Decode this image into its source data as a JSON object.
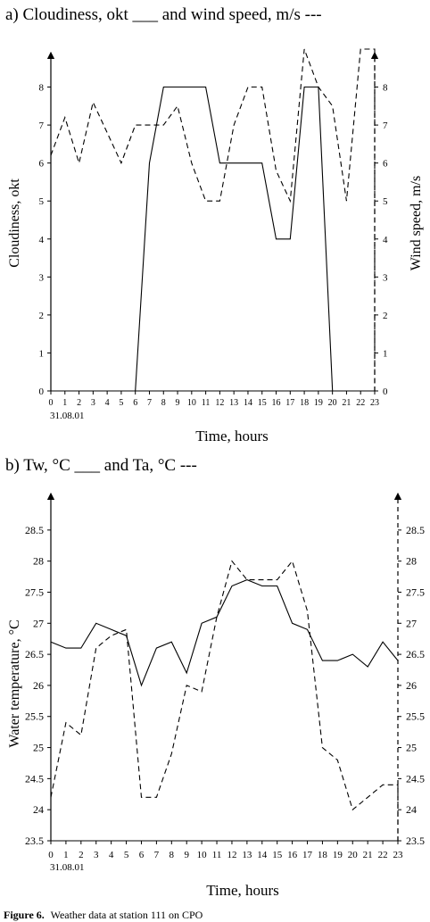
{
  "figure": {
    "caption_label": "Figure 6.",
    "caption_text": "Weather data at station 111 on CPO"
  },
  "chart_data": [
    {
      "type": "line",
      "title": "a) Cloudiness, okt ___ and wind speed, m/s ---",
      "xlabel": "Time, hours",
      "ylabel": "Cloudiness, okt",
      "y2label": "Wind speed, m/s",
      "date_label": "31.08.01",
      "x_ticks": [
        "0",
        "1",
        "2",
        "3",
        "4",
        "5",
        "6",
        "7",
        "8",
        "9",
        "10",
        "11",
        "12",
        "13",
        "14",
        "15",
        "16",
        "17",
        "18",
        "19",
        "20",
        "21",
        "22",
        "23"
      ],
      "y_ticks": [
        "0",
        "1",
        "2",
        "3",
        "4",
        "5",
        "6",
        "7",
        "8"
      ],
      "y2_ticks": [
        "0",
        "1",
        "2",
        "3",
        "4",
        "5",
        "6",
        "7",
        "8"
      ],
      "ylim": [
        0,
        8.6
      ],
      "y2lim": [
        0,
        8.6
      ],
      "grid": false,
      "series": [
        {
          "axis": "left",
          "style": "solid",
          "points": [
            [
              6,
              0
            ],
            [
              7,
              6
            ],
            [
              8,
              8
            ],
            [
              9,
              8
            ],
            [
              10,
              8
            ],
            [
              11,
              8
            ],
            [
              12,
              6
            ],
            [
              13,
              6
            ],
            [
              14,
              6
            ],
            [
              15,
              6
            ],
            [
              16,
              4
            ],
            [
              17,
              4
            ],
            [
              18,
              8
            ],
            [
              19,
              8
            ],
            [
              20,
              0
            ]
          ]
        },
        {
          "axis": "right",
          "style": "dashed",
          "points": [
            [
              0,
              6.2
            ],
            [
              1,
              7.2
            ],
            [
              2,
              6
            ],
            [
              3,
              7.6
            ],
            [
              4,
              6.8
            ],
            [
              5,
              6
            ],
            [
              6,
              7
            ],
            [
              7,
              7
            ],
            [
              8,
              7
            ],
            [
              9,
              7.5
            ],
            [
              10,
              6
            ],
            [
              11,
              5
            ],
            [
              12,
              5
            ],
            [
              13,
              7
            ],
            [
              14,
              8
            ],
            [
              15,
              8
            ],
            [
              16,
              5.8
            ],
            [
              17,
              5
            ],
            [
              18,
              9
            ],
            [
              19,
              8
            ],
            [
              20,
              7.5
            ],
            [
              21,
              5
            ],
            [
              22,
              9
            ],
            [
              23,
              9
            ],
            [
              23,
              0
            ]
          ]
        }
      ]
    },
    {
      "type": "line",
      "title": "b) Tw, °C ___ and Ta, °C ---",
      "xlabel": "Time, hours",
      "ylabel": "Water temperature, °C",
      "date_label": "31.08.01",
      "x_ticks": [
        "0",
        "1",
        "2",
        "3",
        "4",
        "5",
        "6",
        "7",
        "8",
        "9",
        "10",
        "11",
        "12",
        "13",
        "14",
        "15",
        "16",
        "17",
        "18",
        "19",
        "20",
        "21",
        "22",
        "23"
      ],
      "y_ticks": [
        "23.5",
        "24",
        "24.5",
        "25",
        "25.5",
        "26",
        "26.5",
        "27",
        "27.5",
        "28",
        "28.5"
      ],
      "y2_ticks": [
        "23.5",
        "24",
        "24.5",
        "25",
        "25.5",
        "26",
        "26.5",
        "27",
        "27.5",
        "28",
        "28.5"
      ],
      "ylim": [
        23.5,
        28.9
      ],
      "y2lim": [
        23.5,
        28.9
      ],
      "grid": false,
      "series": [
        {
          "axis": "left",
          "style": "solid",
          "points": [
            [
              0,
              26.7
            ],
            [
              1,
              26.6
            ],
            [
              2,
              26.6
            ],
            [
              3,
              27
            ],
            [
              4,
              26.9
            ],
            [
              5,
              26.8
            ],
            [
              6,
              26
            ],
            [
              7,
              26.6
            ],
            [
              8,
              26.7
            ],
            [
              9,
              26.2
            ],
            [
              10,
              27
            ],
            [
              11,
              27.1
            ],
            [
              12,
              27.6
            ],
            [
              13,
              27.7
            ],
            [
              14,
              27.6
            ],
            [
              15,
              27.6
            ],
            [
              16,
              27
            ],
            [
              17,
              26.9
            ],
            [
              18,
              26.4
            ],
            [
              19,
              26.4
            ],
            [
              20,
              26.5
            ],
            [
              21,
              26.3
            ],
            [
              22,
              26.7
            ],
            [
              23,
              26.4
            ]
          ]
        },
        {
          "axis": "right",
          "style": "dashed",
          "points": [
            [
              0,
              24.2
            ],
            [
              1,
              25.4
            ],
            [
              2,
              25.2
            ],
            [
              3,
              26.6
            ],
            [
              4,
              26.8
            ],
            [
              5,
              26.9
            ],
            [
              6,
              24.2
            ],
            [
              7,
              24.2
            ],
            [
              8,
              24.9
            ],
            [
              9,
              26
            ],
            [
              10,
              25.9
            ],
            [
              11,
              27.1
            ],
            [
              12,
              28
            ],
            [
              13,
              27.7
            ],
            [
              14,
              27.7
            ],
            [
              15,
              27.7
            ],
            [
              16,
              28
            ],
            [
              17,
              27.2
            ],
            [
              18,
              25
            ],
            [
              19,
              24.8
            ],
            [
              20,
              24
            ],
            [
              21,
              24.2
            ],
            [
              22,
              24.4
            ],
            [
              23,
              24.4
            ],
            [
              23,
              23.5
            ]
          ]
        }
      ]
    }
  ]
}
